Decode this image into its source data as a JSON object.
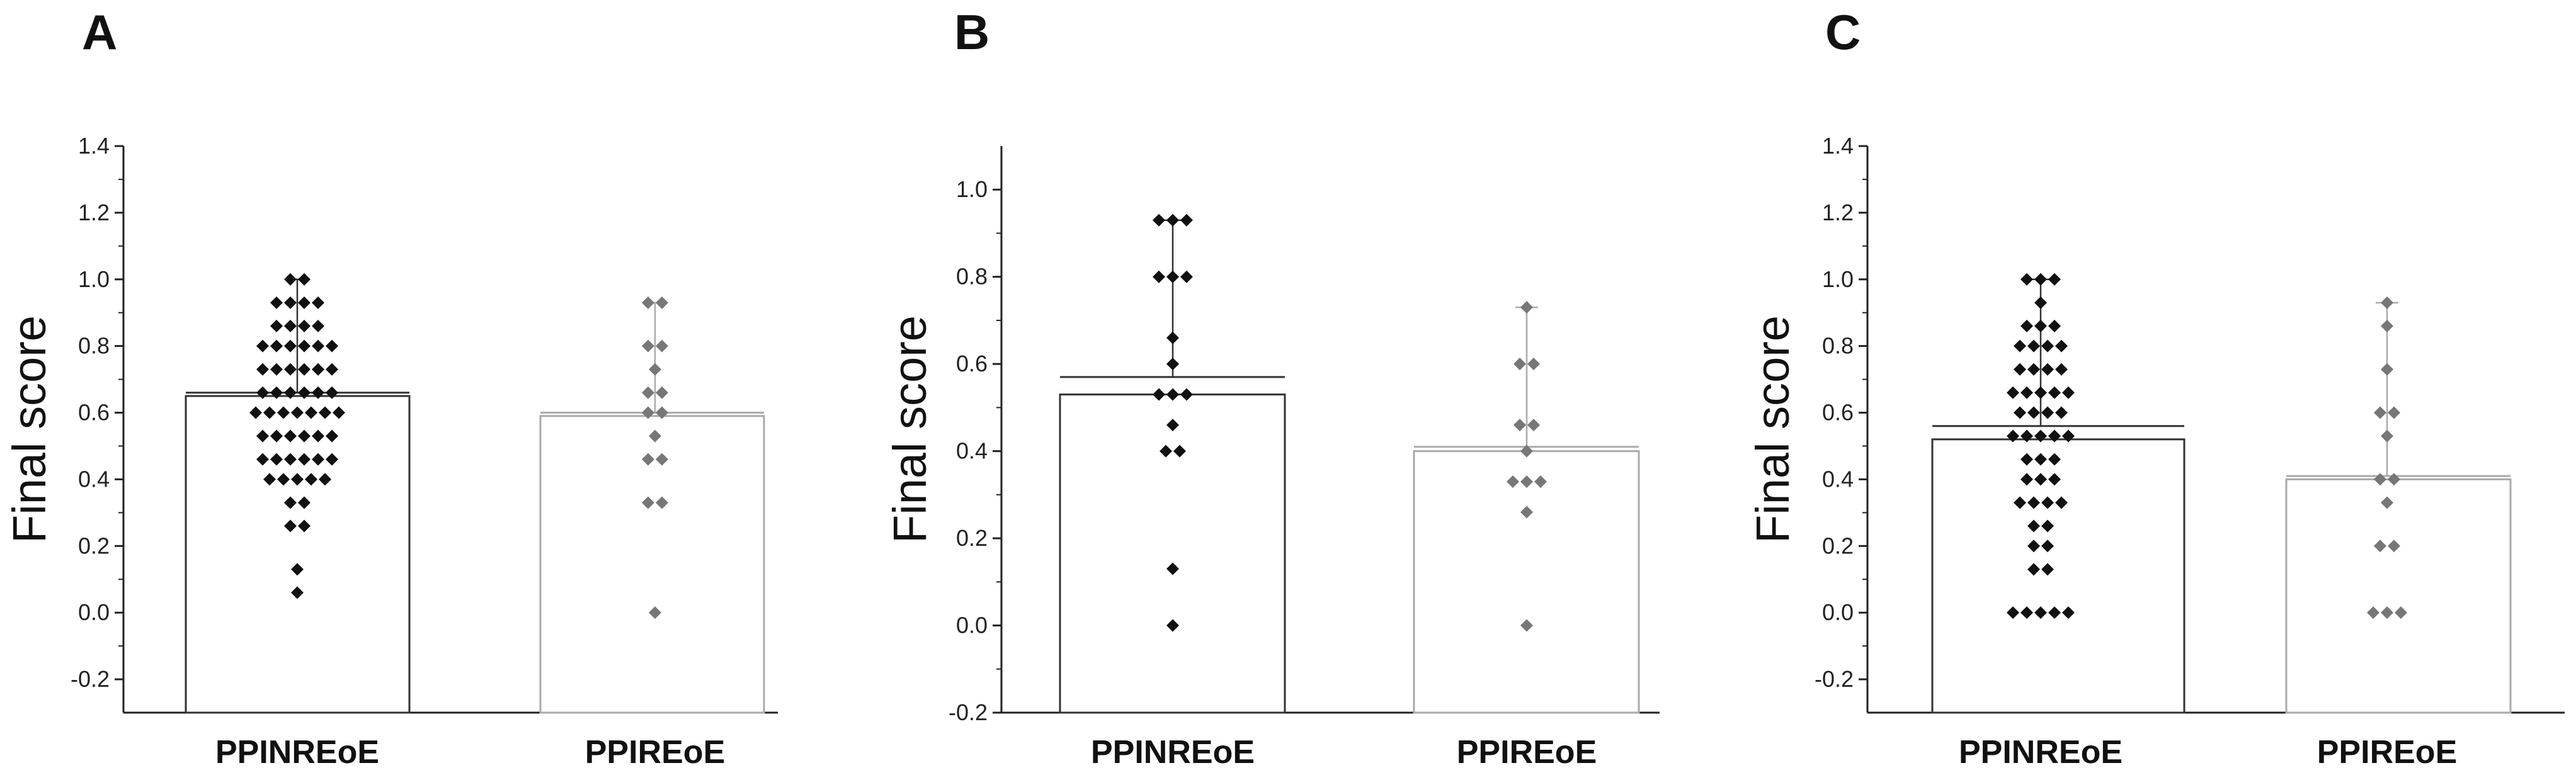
{
  "chart_data": [
    {
      "panel": "A",
      "type": "bar",
      "ylabel": "Final score",
      "xlabel": "",
      "ylim": [
        -0.3,
        1.4
      ],
      "yticks": [
        -0.2,
        0.0,
        0.2,
        0.4,
        0.6,
        0.8,
        1.0,
        1.2,
        1.4
      ],
      "categories": [
        "PPINREoE",
        "PPIREoE"
      ],
      "series": [
        {
          "name": "PPINREoE",
          "bar_value": 0.65,
          "mean_line": 0.66,
          "error_top": 1.0,
          "color": "#111111",
          "bar_edge": "#333333",
          "points": [
            1.0,
            1.0,
            0.93,
            0.93,
            0.93,
            0.93,
            0.86,
            0.86,
            0.86,
            0.86,
            0.8,
            0.8,
            0.8,
            0.8,
            0.8,
            0.8,
            0.73,
            0.73,
            0.73,
            0.73,
            0.73,
            0.73,
            0.66,
            0.66,
            0.66,
            0.66,
            0.66,
            0.66,
            0.6,
            0.6,
            0.6,
            0.6,
            0.6,
            0.6,
            0.6,
            0.53,
            0.53,
            0.53,
            0.53,
            0.53,
            0.53,
            0.46,
            0.46,
            0.46,
            0.46,
            0.46,
            0.46,
            0.4,
            0.4,
            0.4,
            0.4,
            0.4,
            0.33,
            0.33,
            0.26,
            0.26,
            0.13,
            0.06
          ]
        },
        {
          "name": "PPIREoE",
          "bar_value": 0.59,
          "mean_line": 0.6,
          "error_top": 0.93,
          "color": "#777777",
          "bar_edge": "#aaaaaa",
          "points": [
            0.93,
            0.93,
            0.8,
            0.8,
            0.73,
            0.66,
            0.66,
            0.6,
            0.6,
            0.53,
            0.46,
            0.46,
            0.33,
            0.33,
            0.0
          ]
        }
      ]
    },
    {
      "panel": "B",
      "type": "bar",
      "ylabel": "Final score",
      "xlabel": "",
      "ylim": [
        -0.2,
        1.1
      ],
      "yticks": [
        -0.2,
        0.0,
        0.2,
        0.4,
        0.6,
        0.8,
        1.0
      ],
      "categories": [
        "PPINREoE",
        "PPIREoE"
      ],
      "series": [
        {
          "name": "PPINREoE",
          "bar_value": 0.53,
          "mean_line": 0.57,
          "error_top": 0.93,
          "color": "#111111",
          "bar_edge": "#333333",
          "points": [
            0.93,
            0.93,
            0.93,
            0.8,
            0.8,
            0.8,
            0.66,
            0.6,
            0.53,
            0.53,
            0.53,
            0.46,
            0.4,
            0.4,
            0.13,
            0.0
          ]
        },
        {
          "name": "PPIREoE",
          "bar_value": 0.4,
          "mean_line": 0.41,
          "error_top": 0.73,
          "color": "#777777",
          "bar_edge": "#aaaaaa",
          "points": [
            0.73,
            0.6,
            0.6,
            0.46,
            0.46,
            0.4,
            0.33,
            0.33,
            0.33,
            0.26,
            0.0
          ]
        }
      ]
    },
    {
      "panel": "C",
      "type": "bar",
      "ylabel": "Final score",
      "xlabel": "",
      "ylim": [
        -0.3,
        1.4
      ],
      "yticks": [
        -0.2,
        0.0,
        0.2,
        0.4,
        0.6,
        0.8,
        1.0,
        1.2,
        1.4
      ],
      "categories": [
        "PPINREoE",
        "PPIREoE"
      ],
      "series": [
        {
          "name": "PPINREoE",
          "bar_value": 0.52,
          "mean_line": 0.56,
          "error_top": 1.0,
          "color": "#111111",
          "bar_edge": "#333333",
          "points": [
            1.0,
            1.0,
            1.0,
            0.93,
            0.86,
            0.86,
            0.86,
            0.8,
            0.8,
            0.8,
            0.8,
            0.73,
            0.73,
            0.73,
            0.73,
            0.66,
            0.66,
            0.66,
            0.66,
            0.66,
            0.6,
            0.6,
            0.6,
            0.6,
            0.53,
            0.53,
            0.53,
            0.53,
            0.53,
            0.46,
            0.46,
            0.46,
            0.4,
            0.4,
            0.4,
            0.33,
            0.33,
            0.33,
            0.33,
            0.26,
            0.26,
            0.2,
            0.2,
            0.13,
            0.13,
            0.0,
            0.0,
            0.0,
            0.0,
            0.0
          ]
        },
        {
          "name": "PPIREoE",
          "bar_value": 0.4,
          "mean_line": 0.41,
          "error_top": 0.93,
          "color": "#777777",
          "bar_edge": "#aaaaaa",
          "points": [
            0.93,
            0.86,
            0.73,
            0.6,
            0.6,
            0.53,
            0.4,
            0.4,
            0.33,
            0.2,
            0.2,
            0.0,
            0.0,
            0.0
          ]
        }
      ]
    }
  ]
}
